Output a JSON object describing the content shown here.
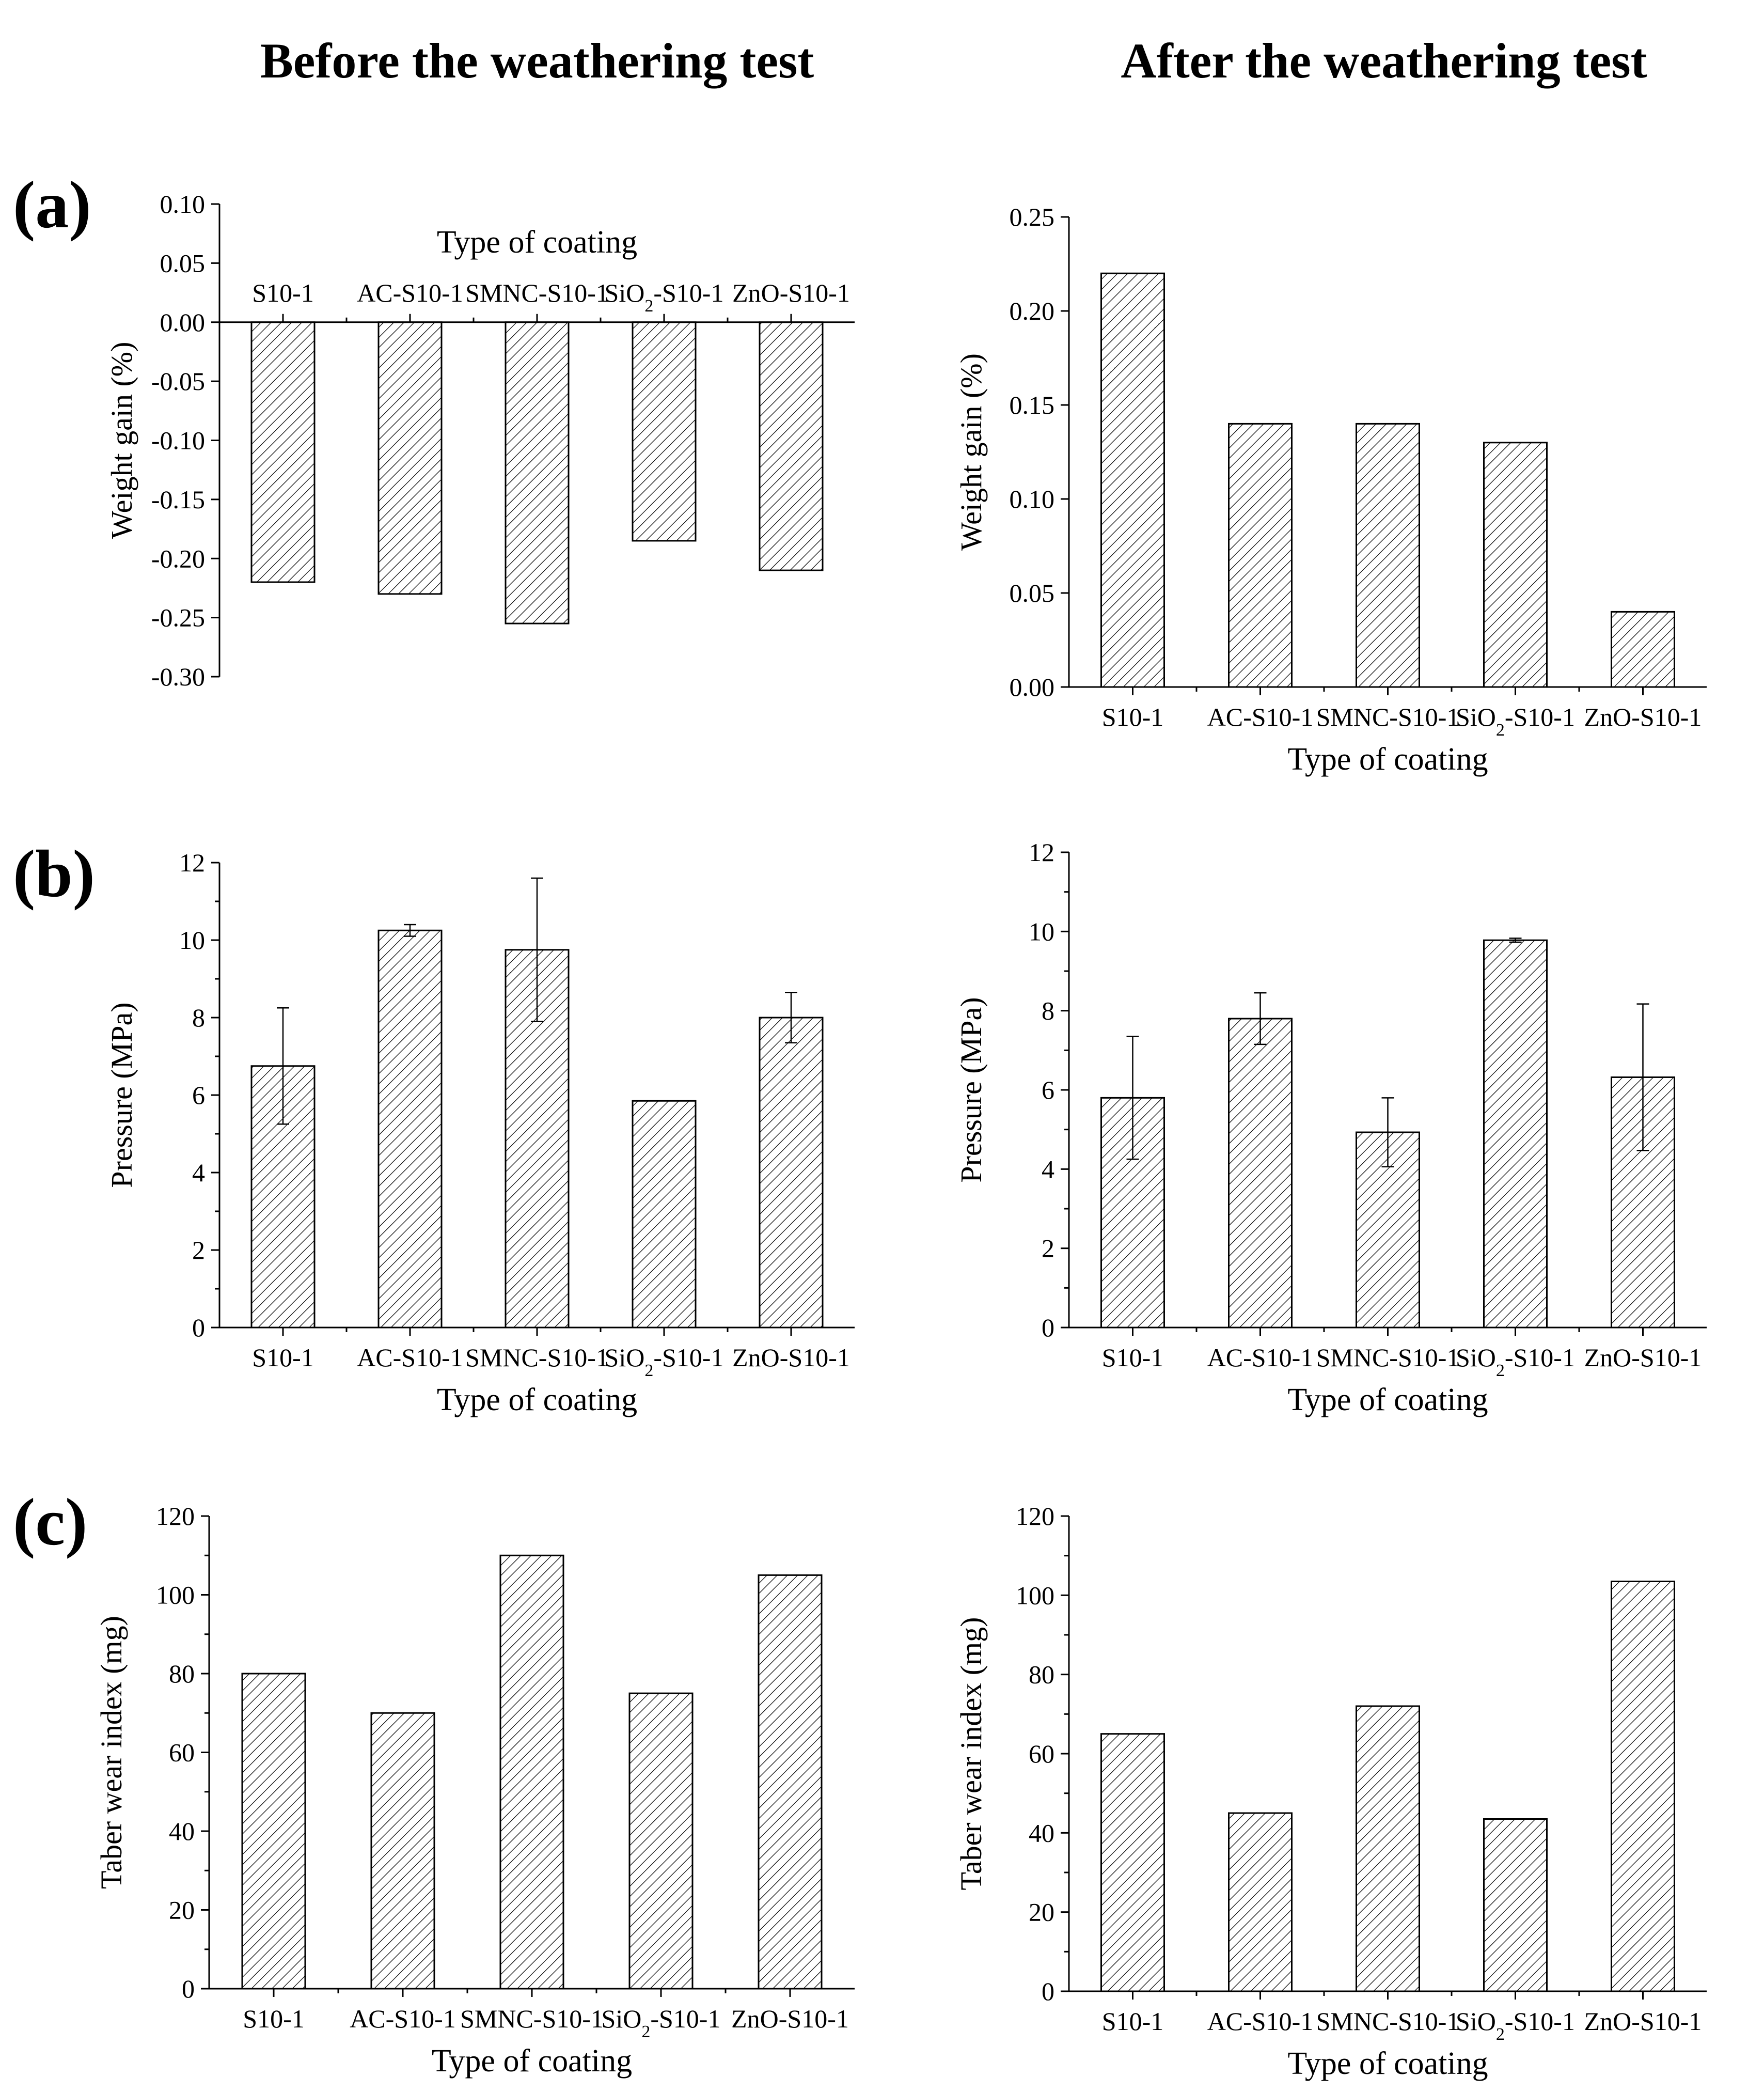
{
  "headers": {
    "before": "Before the weathering test",
    "after": "After the weathering test"
  },
  "panel_labels": [
    "(a)",
    "(b)",
    "(c)"
  ],
  "chart_data": [
    {
      "id": "a-before",
      "type": "bar",
      "title": "",
      "xlabel": "Type of coating",
      "ylabel": "Weight gain (%)",
      "categories": [
        "S10-1",
        "AC-S10-1",
        "SMNC-S10-1",
        "SiO2-S10-1",
        "ZnO-S10-1"
      ],
      "values": [
        -0.22,
        -0.23,
        -0.255,
        -0.185,
        -0.21
      ],
      "ylim": [
        -0.3,
        0.1
      ],
      "major": 0.05,
      "decimals": 2,
      "minor": false,
      "xaxis": "top",
      "xlabel_pos": "top",
      "grid": false
    },
    {
      "id": "a-after",
      "type": "bar",
      "title": "",
      "xlabel": "Type of coating",
      "ylabel": "Weight gain (%)",
      "categories": [
        "S10-1",
        "AC-S10-1",
        "SMNC-S10-1",
        "SiO2-S10-1",
        "ZnO-S10-1"
      ],
      "values": [
        0.22,
        0.14,
        0.14,
        0.13,
        0.04
      ],
      "ylim": [
        0,
        0.25
      ],
      "major": 0.05,
      "decimals": 2,
      "minor": false,
      "xaxis": "bottom",
      "xlabel_pos": "bottom",
      "grid": false
    },
    {
      "id": "b-before",
      "type": "bar",
      "title": "",
      "xlabel": "Type of coating",
      "ylabel": "Pressure (MPa)",
      "categories": [
        "S10-1",
        "AC-S10-1",
        "SMNC-S10-1",
        "SiO2-S10-1",
        "ZnO-S10-1"
      ],
      "values": [
        6.75,
        10.25,
        9.75,
        5.85,
        8.0
      ],
      "errors": [
        1.5,
        0.15,
        1.85,
        0,
        0.65
      ],
      "ylim": [
        0,
        12
      ],
      "major": 2,
      "decimals": 0,
      "minor": true,
      "xaxis": "bottom",
      "xlabel_pos": "bottom",
      "grid": false
    },
    {
      "id": "b-after",
      "type": "bar",
      "title": "",
      "xlabel": "Type of coating",
      "ylabel": "Pressure (MPa)",
      "categories": [
        "S10-1",
        "AC-S10-1",
        "SMNC-S10-1",
        "SiO2-S10-1",
        "ZnO-S10-1"
      ],
      "values": [
        5.8,
        7.8,
        4.93,
        9.78,
        6.32
      ],
      "errors": [
        1.55,
        0.65,
        0.87,
        0.05,
        1.85
      ],
      "ylim": [
        0,
        12
      ],
      "major": 2,
      "decimals": 0,
      "minor": true,
      "xaxis": "bottom",
      "xlabel_pos": "bottom",
      "grid": false
    },
    {
      "id": "c-before",
      "type": "bar",
      "title": "",
      "xlabel": "Type of coating",
      "ylabel": "Taber wear index (mg)",
      "categories": [
        "S10-1",
        "AC-S10-1",
        "SMNC-S10-1",
        "SiO2-S10-1",
        "ZnO-S10-1"
      ],
      "values": [
        80,
        70,
        110,
        75,
        105
      ],
      "ylim": [
        0,
        120
      ],
      "major": 20,
      "decimals": 0,
      "minor": true,
      "xaxis": "bottom",
      "xlabel_pos": "bottom",
      "grid": false
    },
    {
      "id": "c-after",
      "type": "bar",
      "title": "",
      "xlabel": "Type of coating",
      "ylabel": "Taber wear index (mg)",
      "categories": [
        "S10-1",
        "AC-S10-1",
        "SMNC-S10-1",
        "SiO2-S10-1",
        "ZnO-S10-1"
      ],
      "values": [
        65,
        45,
        72,
        43.5,
        103.5
      ],
      "ylim": [
        0,
        120
      ],
      "major": 20,
      "decimals": 0,
      "minor": true,
      "xaxis": "bottom",
      "xlabel_pos": "bottom",
      "grid": false
    }
  ]
}
